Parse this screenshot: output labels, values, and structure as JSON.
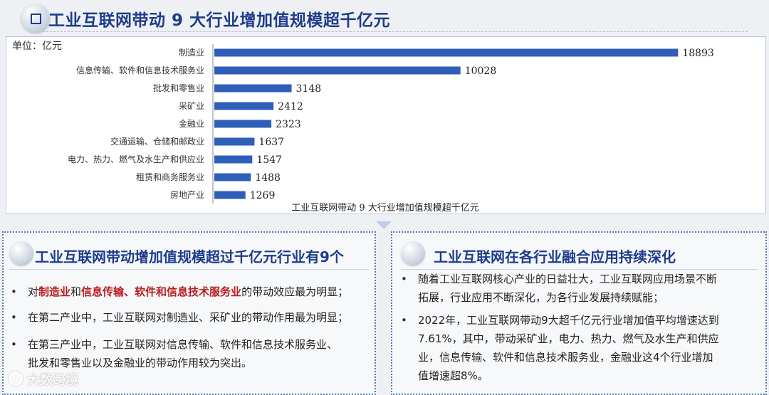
{
  "header": {
    "title": "工业互联网带动 9 大行业增加值规模超千亿元"
  },
  "chart_data": {
    "type": "bar",
    "orientation": "horizontal",
    "unit_label": "单位：亿元",
    "caption": "工业互联网带动 9 大行业增加值规模超千亿元",
    "categories": [
      "制造业",
      "信息传输、软件和信息技术服务业",
      "批发和零售业",
      "采矿业",
      "金融业",
      "交通运输、仓储和邮政业",
      "电力、热力、燃气及水生产和供应业",
      "租赁和商务服务业",
      "房地产业"
    ],
    "values": [
      18893,
      10028,
      3148,
      2412,
      2323,
      1637,
      1547,
      1488,
      1269
    ],
    "xlim": [
      0,
      19000
    ],
    "grid": false,
    "legend": "none",
    "colors": {
      "bar": "#2e5fb8"
    }
  },
  "left_panel": {
    "heading": "工业互联网带动增加值规模超过千亿元行业有9个",
    "bullets": [
      {
        "prefix": "对",
        "highlight1": "制造业",
        "mid": "和",
        "highlight2": "信息传输、软件和信息技术服务业",
        "suffix": "的带动效应最为明显；"
      },
      {
        "text": "在第二产业中，工业互联网对制造业、采矿业的带动作用最为明显；"
      },
      {
        "line1": "在第三产业中，工业互联网对信息传输、软件和信息技术服务业、",
        "line2": "批发和零售业以及金融业的带动作用较为突出。"
      }
    ]
  },
  "right_panel": {
    "heading": "工业互联网在各行业融合应用持续深化",
    "bullets": [
      {
        "line1": "随着工业互联网核心产业的日益壮大，工业互联网应用场景不断",
        "line2": "拓展，行业应用不断深化，为各行业发展持续赋能；"
      },
      {
        "line1": "2022年，工业互联网带动9大超千亿元行业增加值平均增速达到",
        "line2": "7.61%，其中，带动采矿业，电力、热力、燃气及水生产和供应",
        "line3": "业，信息传输、软件和信息技术服务业，金融业这4个行业增加",
        "line4": "值增速超8%。"
      }
    ]
  },
  "watermark": {
    "text": "大数跨境"
  },
  "colors": {
    "accent": "#1e3c8c",
    "highlight": "#b71c1c",
    "bar": "#2e5fb8"
  }
}
